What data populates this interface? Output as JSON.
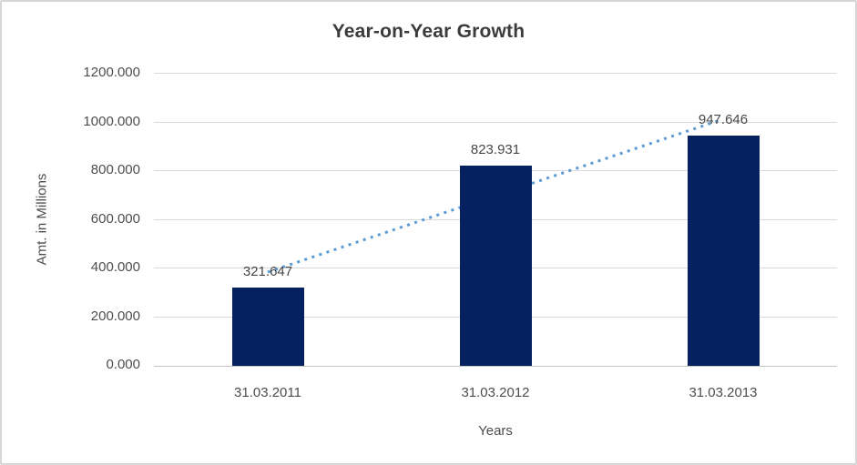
{
  "window": {
    "background_color": "#ffffff",
    "border_color": "#d6d6d6"
  },
  "chart_data": {
    "type": "bar",
    "title": "Year-on-Year Growth",
    "xlabel": "Years",
    "ylabel": "Amt. in Millions",
    "categories": [
      "31.03.2011",
      "31.03.2012",
      "31.03.2013"
    ],
    "values": [
      321.647,
      823.931,
      947.646
    ],
    "data_labels": [
      "321.647",
      "823.931",
      "947.646"
    ],
    "ylim": [
      0,
      1200
    ],
    "ytick_labels": [
      "0.000",
      "200.000",
      "400.000",
      "600.000",
      "800.000",
      "1000.000",
      "1200.000"
    ],
    "grid": true,
    "legend": "none",
    "bar_color": "#06215f",
    "grid_color": "#d9d9d9",
    "text_color": "#4d4d4d",
    "title_color": "#3b3b3b",
    "trendline": {
      "type": "linear",
      "style": "dotted",
      "color": "#5b9bd5",
      "start_value": 385,
      "end_value": 1011
    }
  }
}
